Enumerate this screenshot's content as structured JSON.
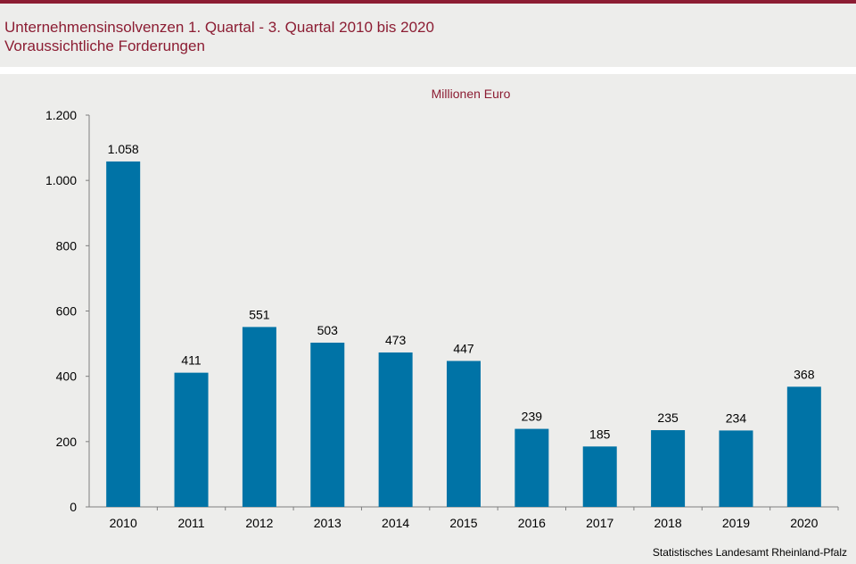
{
  "header": {
    "title": "Unternehmensinsolvenzen 1. Quartal - 3. Quartal 2010 bis 2020",
    "subtitle": "Voraussichtliche Forderungen"
  },
  "colors": {
    "accent": "#8c1d33",
    "bar": "#0073a6"
  },
  "source": "Statistisches Landesamt Rheinland-Pfalz",
  "chart_data": {
    "type": "bar",
    "unit_label": "Millionen Euro",
    "categories": [
      "2010",
      "2011",
      "2012",
      "2013",
      "2014",
      "2015",
      "2016",
      "2017",
      "2018",
      "2019",
      "2020"
    ],
    "values": [
      1058,
      411,
      551,
      503,
      473,
      447,
      239,
      185,
      235,
      234,
      368
    ],
    "value_labels": [
      "1.058",
      "411",
      "551",
      "503",
      "473",
      "447",
      "239",
      "185",
      "235",
      "234",
      "368"
    ],
    "ylim": [
      0,
      1200
    ],
    "y_ticks": [
      0,
      200,
      400,
      600,
      800,
      1000,
      1200
    ],
    "y_tick_labels": [
      "0",
      "200",
      "400",
      "600",
      "800",
      "1.000",
      "1.200"
    ],
    "grid": false,
    "legend": "none"
  }
}
